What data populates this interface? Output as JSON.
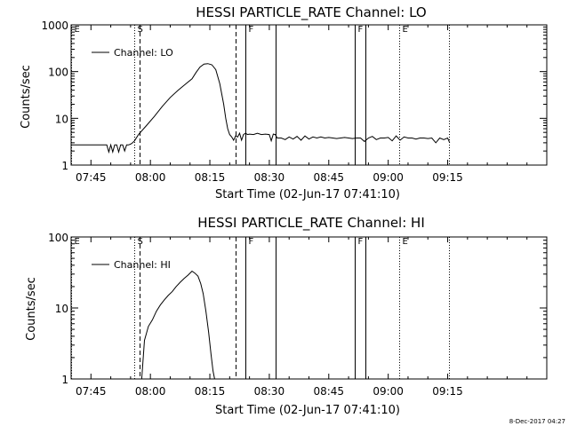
{
  "chart_data": [
    {
      "type": "line",
      "title": "HESSI PARTICLE_RATE Channel: LO",
      "xlabel": "Start Time (02-Jun-17 07:41:10)",
      "ylabel": "Counts/sec",
      "x_tick_labels": [
        "07:45",
        "08:00",
        "08:15",
        "08:30",
        "08:45",
        "09:00",
        "09:15"
      ],
      "x_tick_minutes": [
        465,
        480,
        495,
        510,
        525,
        540,
        555
      ],
      "xlim_minutes": [
        460,
        580
      ],
      "y_scale": "log",
      "ylim": [
        1,
        1000
      ],
      "y_tick_labels": [
        "1",
        "10",
        "100",
        "1000"
      ],
      "legend": {
        "position": "top-left",
        "entries": [
          "Channel: LO"
        ]
      },
      "series": [
        {
          "name": "Channel: LO",
          "x_minutes": [
            460,
            469,
            469.5,
            470,
            470.5,
            471,
            471.5,
            472,
            472.5,
            473,
            473.5,
            474,
            474.5,
            475,
            475.5,
            476,
            477,
            479,
            481,
            483,
            485,
            487,
            489,
            490.5,
            491.5,
            492.5,
            493.5,
            494.5,
            495.5,
            496.5,
            497.5,
            498.5,
            499,
            499.5,
            500,
            500.5,
            501,
            501.5,
            502,
            502.5,
            503,
            503.5,
            504,
            504.5,
            505,
            506,
            507,
            508,
            509,
            510,
            510.5,
            511,
            511.5,
            512,
            513,
            514,
            515,
            516,
            517,
            518,
            519,
            520,
            521,
            522,
            523,
            524,
            525,
            526,
            527,
            528,
            529,
            530,
            531,
            532,
            533,
            534,
            535,
            536,
            537,
            538,
            539,
            540,
            541,
            542,
            543,
            544,
            545,
            546,
            547,
            548,
            549,
            550,
            551,
            552,
            553,
            554,
            555,
            555.5
          ],
          "values": [
            2.7,
            2.7,
            1.9,
            2.7,
            1.9,
            2.7,
            2.7,
            1.9,
            2.7,
            2.7,
            2.0,
            2.7,
            2.7,
            2.8,
            3.0,
            3.3,
            4.5,
            7.0,
            11,
            18,
            28,
            40,
            55,
            70,
            95,
            125,
            145,
            148,
            140,
            110,
            55,
            20,
            10,
            6,
            4.5,
            4.0,
            3.4,
            4.2,
            4.0,
            4.8,
            3.4,
            4.5,
            4.8,
            4.5,
            4.6,
            4.5,
            4.8,
            4.5,
            4.6,
            4.5,
            3.3,
            4.6,
            4.5,
            3.8,
            3.8,
            3.5,
            4.0,
            3.6,
            4.1,
            3.4,
            4.2,
            3.6,
            4.0,
            3.8,
            4.0,
            3.8,
            3.9,
            3.8,
            3.7,
            3.8,
            3.9,
            3.8,
            3.7,
            3.8,
            3.8,
            3.2,
            3.8,
            4.1,
            3.5,
            3.8,
            3.8,
            3.9,
            3.3,
            4.2,
            3.4,
            4.0,
            3.8,
            3.8,
            3.6,
            3.8,
            3.8,
            3.7,
            3.8,
            3.0,
            3.8,
            3.5,
            3.8,
            3.0
          ]
        }
      ],
      "markers": [
        {
          "label": "E",
          "minute": 460,
          "style": "dotted"
        },
        {
          "label": "S",
          "minute": 476,
          "style": "dotted"
        },
        {
          "label": "",
          "minute": 477.2,
          "style": "dashed"
        },
        {
          "label": "",
          "minute": 501.5,
          "style": "dashed"
        },
        {
          "label": "F",
          "minute": 504,
          "style": "solid"
        },
        {
          "label": "",
          "minute": 511.6,
          "style": "solid"
        },
        {
          "label": "F",
          "minute": 531.5,
          "style": "solid"
        },
        {
          "label": "",
          "minute": 534.2,
          "style": "solid"
        },
        {
          "label": "E",
          "minute": 542.8,
          "style": "dotted"
        },
        {
          "label": "",
          "minute": 555.3,
          "style": "dotted"
        }
      ]
    },
    {
      "type": "line",
      "title": "HESSI PARTICLE_RATE Channel: HI",
      "xlabel": "Start Time (02-Jun-17 07:41:10)",
      "ylabel": "Counts/sec",
      "x_tick_labels": [
        "07:45",
        "08:00",
        "08:15",
        "08:30",
        "08:45",
        "09:00",
        "09:15"
      ],
      "x_tick_minutes": [
        465,
        480,
        495,
        510,
        525,
        540,
        555
      ],
      "xlim_minutes": [
        460,
        580
      ],
      "y_scale": "log",
      "ylim": [
        1,
        100
      ],
      "y_tick_labels": [
        "1",
        "10",
        "100"
      ],
      "legend": {
        "position": "top-left",
        "entries": [
          "Channel: HI"
        ]
      },
      "series": [
        {
          "name": "Channel: HI",
          "x_minutes": [
            477.8,
            478.5,
            479.5,
            480.5,
            481.5,
            482.5,
            483.5,
            484.5,
            485.5,
            486.5,
            487.5,
            488.5,
            489.5,
            490.5,
            491.2,
            492,
            492.7,
            493.3,
            494,
            494.7,
            495.3,
            495.8,
            496.2
          ],
          "values": [
            1.0,
            3.5,
            5.5,
            6.8,
            9.0,
            11,
            13,
            15,
            17,
            20,
            23,
            26,
            29,
            33,
            31,
            28,
            22,
            16,
            9,
            4.5,
            2.2,
            1.3,
            1.0
          ]
        }
      ],
      "markers": [
        {
          "label": "E",
          "minute": 460,
          "style": "dotted"
        },
        {
          "label": "S",
          "minute": 476,
          "style": "dotted"
        },
        {
          "label": "",
          "minute": 477.2,
          "style": "dashed"
        },
        {
          "label": "",
          "minute": 501.5,
          "style": "dashed"
        },
        {
          "label": "F",
          "minute": 504,
          "style": "solid"
        },
        {
          "label": "",
          "minute": 511.6,
          "style": "solid"
        },
        {
          "label": "F",
          "minute": 531.5,
          "style": "solid"
        },
        {
          "label": "",
          "minute": 534.2,
          "style": "solid"
        },
        {
          "label": "E",
          "minute": 542.8,
          "style": "dotted"
        },
        {
          "label": "",
          "minute": 555.3,
          "style": "dotted"
        }
      ]
    }
  ],
  "footer": {
    "timestamp": "8-Dec-2017 04:27"
  },
  "colors": {
    "background": "#ffffff",
    "foreground": "#000000"
  }
}
